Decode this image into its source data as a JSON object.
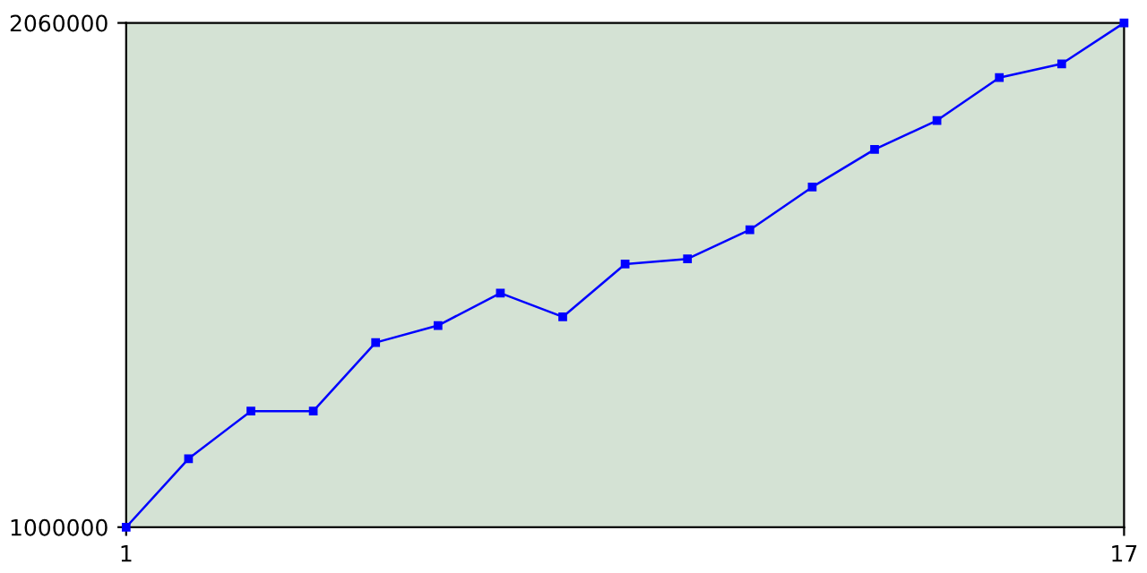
{
  "chart_data": {
    "type": "line",
    "x": [
      1,
      2,
      3,
      4,
      5,
      6,
      7,
      8,
      9,
      10,
      11,
      12,
      13,
      14,
      15,
      16,
      17
    ],
    "series": [
      {
        "color": "#0000ff",
        "values": [
          1000000,
          1144000,
          1244000,
          1244000,
          1388000,
          1424000,
          1492000,
          1442000,
          1553000,
          1564000,
          1625000,
          1715000,
          1794000,
          1855000,
          1945000,
          1974000,
          2060000
        ]
      }
    ],
    "xlim": [
      1,
      17
    ],
    "ylim": [
      1000000,
      2060000
    ],
    "xticks": [
      1,
      17
    ],
    "yticks": [
      1000000,
      2060000
    ],
    "grid": false,
    "legend": false,
    "marker": "square",
    "line_style": "solid"
  }
}
